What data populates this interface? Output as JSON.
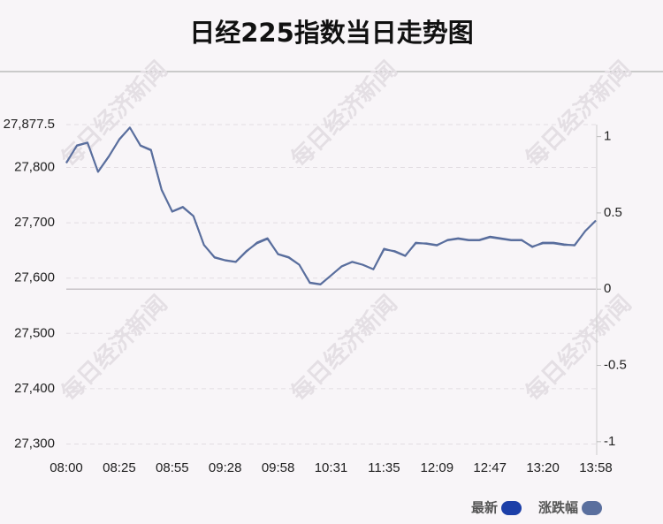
{
  "chart_data": {
    "type": "line",
    "title": "日经225指数当日走势图",
    "watermark": "每日经济新闻",
    "categories": [
      "08:00",
      null,
      null,
      null,
      null,
      "08:25",
      null,
      null,
      null,
      null,
      "08:55",
      null,
      null,
      null,
      null,
      "09:28",
      null,
      null,
      null,
      null,
      "09:58",
      null,
      null,
      null,
      null,
      "10:31",
      null,
      null,
      null,
      null,
      "11:35",
      null,
      null,
      null,
      null,
      "12:09",
      null,
      null,
      null,
      null,
      "12:47",
      null,
      null,
      null,
      null,
      "13:20",
      null,
      null,
      null,
      null,
      "13:58"
    ],
    "series": [
      {
        "name": "最新",
        "color": "#1c3fa8",
        "line_color": "#4f6396",
        "values": [
          27808,
          27840,
          27845,
          27792,
          27819,
          27851,
          27872,
          27840,
          27832,
          27760,
          27720,
          27728,
          27712,
          27660,
          27637,
          27632,
          27629,
          27648,
          27664,
          27672,
          27643,
          27637,
          27624,
          27592,
          27589,
          27605,
          27621,
          27629,
          27624,
          27616,
          27653,
          27648,
          27640,
          27664,
          27662,
          27659,
          27669,
          27672,
          27669,
          27669,
          27675,
          27672,
          27669,
          27669,
          27656,
          27664,
          27664,
          27661,
          27659,
          27685,
          27704
        ]
      },
      {
        "name": "涨跌幅",
        "color": "#5a6f9e",
        "axis": "y2",
        "values": [
          0.83,
          0.94,
          0.96,
          0.77,
          0.87,
          0.98,
          1.06,
          0.94,
          0.91,
          0.65,
          0.51,
          0.54,
          0.48,
          0.29,
          0.21,
          0.19,
          0.18,
          0.25,
          0.3,
          0.33,
          0.23,
          0.21,
          0.16,
          0.04,
          0.03,
          0.09,
          0.15,
          0.18,
          0.16,
          0.13,
          0.26,
          0.25,
          0.22,
          0.3,
          0.3,
          0.29,
          0.32,
          0.33,
          0.32,
          0.32,
          0.34,
          0.33,
          0.32,
          0.32,
          0.28,
          0.3,
          0.3,
          0.29,
          0.29,
          0.38,
          0.45
        ]
      }
    ],
    "ylim": [
      27280,
      27877.5
    ],
    "yticks": [
      {
        "value": 27877.5,
        "label": "27,877.5"
      },
      {
        "value": 27800,
        "label": "27,800"
      },
      {
        "value": 27700,
        "label": "27,700"
      },
      {
        "value": 27600,
        "label": "27,600"
      },
      {
        "value": 27500,
        "label": "27,500"
      },
      {
        "value": 27400,
        "label": "27,400"
      },
      {
        "value": 27300,
        "label": "27,300"
      }
    ],
    "y2lim": [
      -1.088,
      1.079
    ],
    "y2ticks": [
      1,
      0.5,
      0,
      -0.5,
      -1
    ],
    "grid": true
  }
}
